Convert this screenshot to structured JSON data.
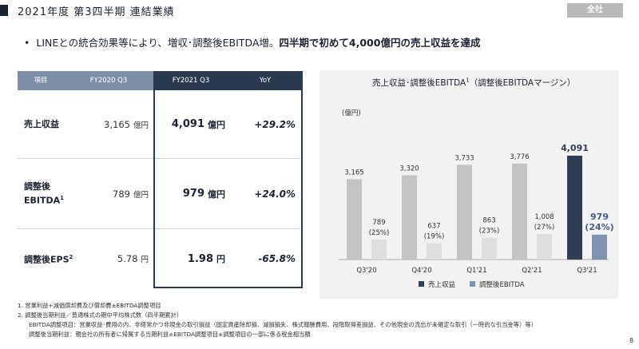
{
  "page": {
    "title": "2021年度 第3四半期 連結業績",
    "badge": "全社",
    "headline_normal": "LINEとの統合効果等により、増収･調整後EBITDA増。",
    "headline_bold": "四半期で初めて4,000億円の売上収益を達成",
    "page_number": "8"
  },
  "table": {
    "headers": {
      "item": "項目",
      "fy2020": "FY2020 Q3",
      "fy2021": "FY2021 Q3",
      "yoy": "YoY"
    },
    "rows": [
      {
        "label": "売上収益",
        "label2": "",
        "sup": "",
        "fy2020": "3,165",
        "fy2020_unit": "億円",
        "fy2021": "4,091",
        "fy2021_unit": "億円",
        "yoy": "+29.2%"
      },
      {
        "label": "調整後",
        "label2": "EBITDA",
        "sup": "1",
        "fy2020": "789",
        "fy2020_unit": "億円",
        "fy2021": "979",
        "fy2021_unit": "億円",
        "yoy": "+24.0%"
      },
      {
        "label": "調整後EPS",
        "label2": "",
        "sup": "2",
        "fy2020": "5.78",
        "fy2020_unit": "円",
        "fy2021": "1.98",
        "fy2021_unit": "円",
        "yoy": "-65.8%"
      }
    ]
  },
  "chart_data": {
    "type": "bar",
    "title": "売上収益･調整後EBITDA",
    "title_sup": "1",
    "title_suffix": "（調整後EBITDAマージン）",
    "unit_label": "(億円)",
    "categories": [
      "Q3'20",
      "Q4'20",
      "Q1'21",
      "Q2'21",
      "Q3'21"
    ],
    "series": [
      {
        "name": "売上収益",
        "values": [
          3165,
          3320,
          3733,
          3776,
          4091
        ],
        "labels": [
          "3,165",
          "3,320",
          "3,733",
          "3,776",
          "4,091"
        ],
        "color": "#c4c4c4",
        "highlight_color": "#2f3d55"
      },
      {
        "name": "調整後EBITDA",
        "values": [
          789,
          637,
          863,
          1008,
          979
        ],
        "labels": [
          "789",
          "637",
          "863",
          "1,008",
          "979"
        ],
        "margins": [
          "(25%)",
          "(19%)",
          "(23%)",
          "(27%)",
          "(24%)"
        ],
        "color": "#dedede",
        "highlight_color": "#7f93b0"
      }
    ],
    "ylim": [
      0,
      4500
    ],
    "legend": "bottom",
    "grid": false
  },
  "footnotes": [
    "1.  営業利益+減価償却費及び償却費±EBITDA調整項目",
    "2.  調整後当期利益／普通株式の期中平均株式数（四半期累計）",
    "EBITDA調整項目：営業収益･費用の内、非経常かつ非現金の取引損益（固定資産除却損、減損損失、株式報酬費用、段階取得差損益、その他現金の流出が未確定な取引（一時的な引当金等）等）",
    "調整後当期利益：親会社の所有者に帰属する当期利益±EBITDA調整項目±調整項目の一部に係る税金相当額"
  ]
}
